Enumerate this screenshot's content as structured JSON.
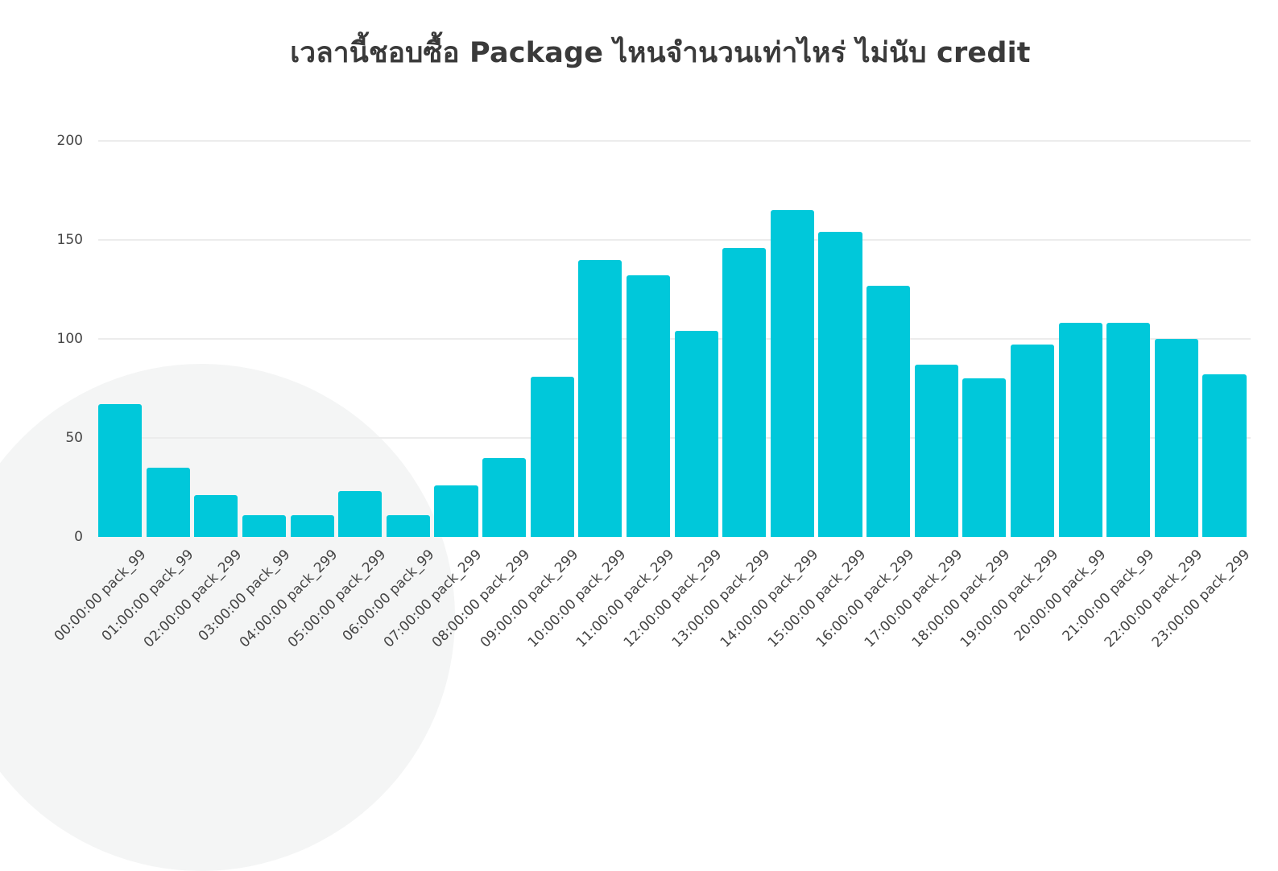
{
  "chart_data": {
    "type": "bar",
    "title": "เวลานี้ชอบซื้อ Package ไหนจำนวนเท่าไหร่ ไม่นับ credit",
    "xlabel": "",
    "ylabel": "",
    "ylim": [
      0,
      200
    ],
    "yticks": [
      "0",
      "50",
      "100",
      "150",
      "200"
    ],
    "grid": true,
    "legend": null,
    "bar_color": "#00c8da",
    "categories": [
      "00:00:00 pack_99",
      "01:00:00 pack_99",
      "02:00:00 pack_299",
      "03:00:00 pack_99",
      "04:00:00 pack_299",
      "05:00:00 pack_299",
      "06:00:00 pack_99",
      "07:00:00 pack_299",
      "08:00:00 pack_299",
      "09:00:00 pack_299",
      "10:00:00 pack_299",
      "11:00:00 pack_299",
      "12:00:00 pack_299",
      "13:00:00 pack_299",
      "14:00:00 pack_299",
      "15:00:00 pack_299",
      "16:00:00 pack_299",
      "17:00:00 pack_299",
      "18:00:00 pack_299",
      "19:00:00 pack_299",
      "20:00:00 pack_99",
      "21:00:00 pack_99",
      "22:00:00 pack_299",
      "23:00:00 pack_299"
    ],
    "values": [
      67,
      35,
      21,
      11,
      11,
      23,
      11,
      26,
      40,
      81,
      140,
      132,
      104,
      146,
      165,
      154,
      127,
      87,
      80,
      97,
      108,
      108,
      100,
      82
    ]
  }
}
